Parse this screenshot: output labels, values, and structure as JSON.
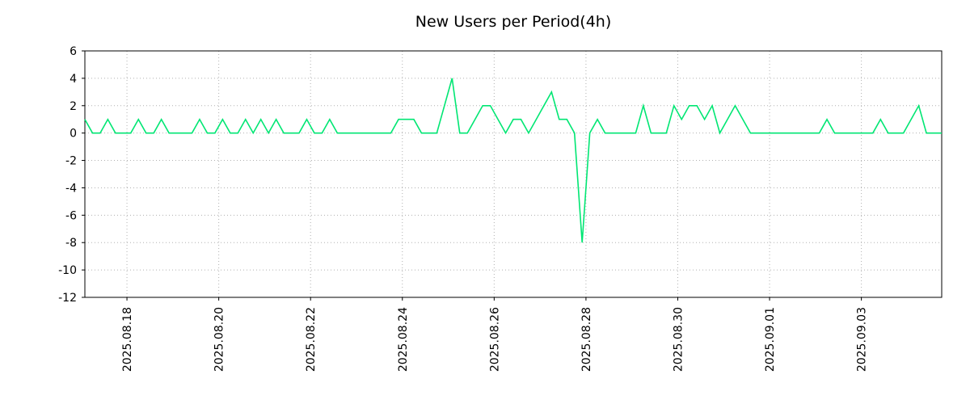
{
  "chart_data": {
    "type": "line",
    "title": "New Users per Period(4h)",
    "period_hours": 4,
    "line_color": "#00e673",
    "grid_color": "#b0b0b0",
    "axis_color": "#000000",
    "grid": "dotted",
    "legend": "none",
    "ylim": [
      -12,
      6
    ],
    "y_ticks": [
      6,
      4,
      2,
      0,
      -2,
      -4,
      -6,
      -8,
      -10,
      -12
    ],
    "x_ticks": [
      {
        "label": "2025.08.18",
        "index": 5.5
      },
      {
        "label": "2025.08.20",
        "index": 17.5
      },
      {
        "label": "2025.08.22",
        "index": 29.5
      },
      {
        "label": "2025.08.24",
        "index": 41.5
      },
      {
        "label": "2025.08.26",
        "index": 53.5
      },
      {
        "label": "2025.08.28",
        "index": 65.5
      },
      {
        "label": "2025.08.30",
        "index": 77.5
      },
      {
        "label": "2025.09.01",
        "index": 89.5
      },
      {
        "label": "2025.09.03",
        "index": 101.5
      }
    ],
    "values": [
      1,
      0,
      0,
      1,
      0,
      0,
      0,
      1,
      0,
      0,
      1,
      0,
      0,
      0,
      0,
      1,
      0,
      0,
      1,
      0,
      0,
      1,
      0,
      1,
      0,
      1,
      0,
      0,
      0,
      1,
      0,
      0,
      1,
      0,
      0,
      0,
      0,
      0,
      0,
      0,
      0,
      1,
      1,
      1,
      0,
      0,
      0,
      2,
      4,
      0,
      0,
      1,
      2,
      2,
      1,
      0,
      1,
      1,
      0,
      1,
      2,
      3,
      1,
      1,
      0,
      -8,
      0,
      1,
      0,
      0,
      0,
      0,
      0,
      2,
      0,
      0,
      0,
      2,
      1,
      2,
      2,
      1,
      2,
      0,
      1,
      2,
      1,
      0,
      0,
      0,
      0,
      0,
      0,
      0,
      0,
      0,
      0,
      1,
      0,
      0,
      0,
      0,
      0,
      0,
      1,
      0,
      0,
      0,
      1,
      2,
      0,
      0,
      0
    ]
  }
}
